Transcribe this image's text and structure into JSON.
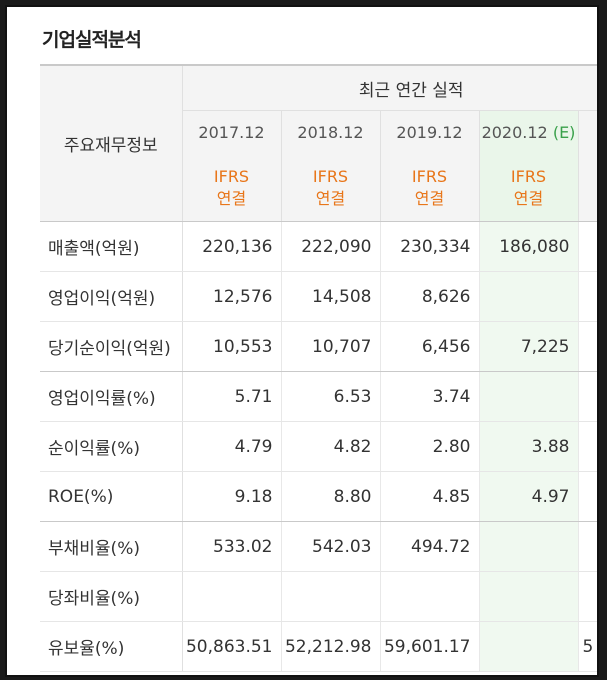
{
  "section_title": "기업실적분석",
  "header": {
    "row_label": "주요재무정보",
    "group_title": "최근 연간 실적",
    "years": [
      {
        "period": "2017.12",
        "suffix": ""
      },
      {
        "period": "2018.12",
        "suffix": ""
      },
      {
        "period": "2019.12",
        "suffix": ""
      },
      {
        "period": "2020.12",
        "suffix": "(E)"
      }
    ],
    "ifrs_line1": "IFRS",
    "ifrs_line2": "연결"
  },
  "rows": [
    {
      "label": "매출액(억원)",
      "values": [
        "220,136",
        "222,090",
        "230,334",
        "186,080"
      ],
      "extra": ""
    },
    {
      "label": "영업이익(억원)",
      "values": [
        "12,576",
        "14,508",
        "8,626",
        ""
      ],
      "extra": ""
    },
    {
      "label": "당기순이익(억원)",
      "values": [
        "10,553",
        "10,707",
        "6,456",
        "7,225"
      ],
      "extra": ""
    },
    {
      "label": "영업이익률(%)",
      "values": [
        "5.71",
        "6.53",
        "3.74",
        ""
      ],
      "extra": ""
    },
    {
      "label": "순이익률(%)",
      "values": [
        "4.79",
        "4.82",
        "2.80",
        "3.88"
      ],
      "extra": ""
    },
    {
      "label": "ROE(%)",
      "values": [
        "9.18",
        "8.80",
        "4.85",
        "4.97"
      ],
      "extra": ""
    },
    {
      "label": "부채비율(%)",
      "values": [
        "533.02",
        "542.03",
        "494.72",
        ""
      ],
      "extra": ""
    },
    {
      "label": "당좌비율(%)",
      "values": [
        "",
        "",
        "",
        ""
      ],
      "extra": ""
    },
    {
      "label": "유보율(%)",
      "values": [
        "50,863.51",
        "52,212.98",
        "59,601.17",
        ""
      ],
      "extra": "5"
    }
  ]
}
